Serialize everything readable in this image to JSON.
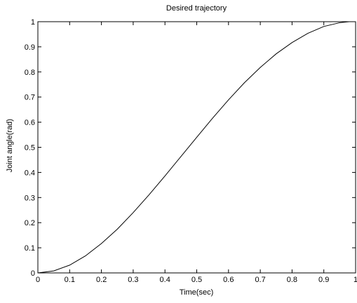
{
  "chart_data": {
    "type": "line",
    "title": "Desired trajectory",
    "xlabel": "Time(sec)",
    "ylabel": "Joint angle(rad)",
    "xlim": [
      0,
      1
    ],
    "ylim": [
      0,
      1
    ],
    "xticks": [
      "0",
      "0.1",
      "0.2",
      "0.3",
      "0.4",
      "0.5",
      "0.6",
      "0.7",
      "0.8",
      "0.9",
      "1"
    ],
    "yticks": [
      "0",
      "0.1",
      "0.2",
      "0.3",
      "0.4",
      "0.5",
      "0.6",
      "0.7",
      "0.8",
      "0.9",
      "1"
    ],
    "grid": false,
    "series": [
      {
        "x": [
          0,
          0.05,
          0.1,
          0.15,
          0.2,
          0.25,
          0.3,
          0.35,
          0.4,
          0.45,
          0.5,
          0.55,
          0.6,
          0.65,
          0.7,
          0.75,
          0.8,
          0.85,
          0.9,
          0.95,
          0.98
        ],
        "y": [
          0,
          0.008,
          0.031,
          0.068,
          0.117,
          0.174,
          0.24,
          0.311,
          0.386,
          0.463,
          0.54,
          0.616,
          0.689,
          0.757,
          0.818,
          0.872,
          0.917,
          0.954,
          0.981,
          0.996,
          1.0
        ],
        "color": "#000000"
      }
    ]
  }
}
